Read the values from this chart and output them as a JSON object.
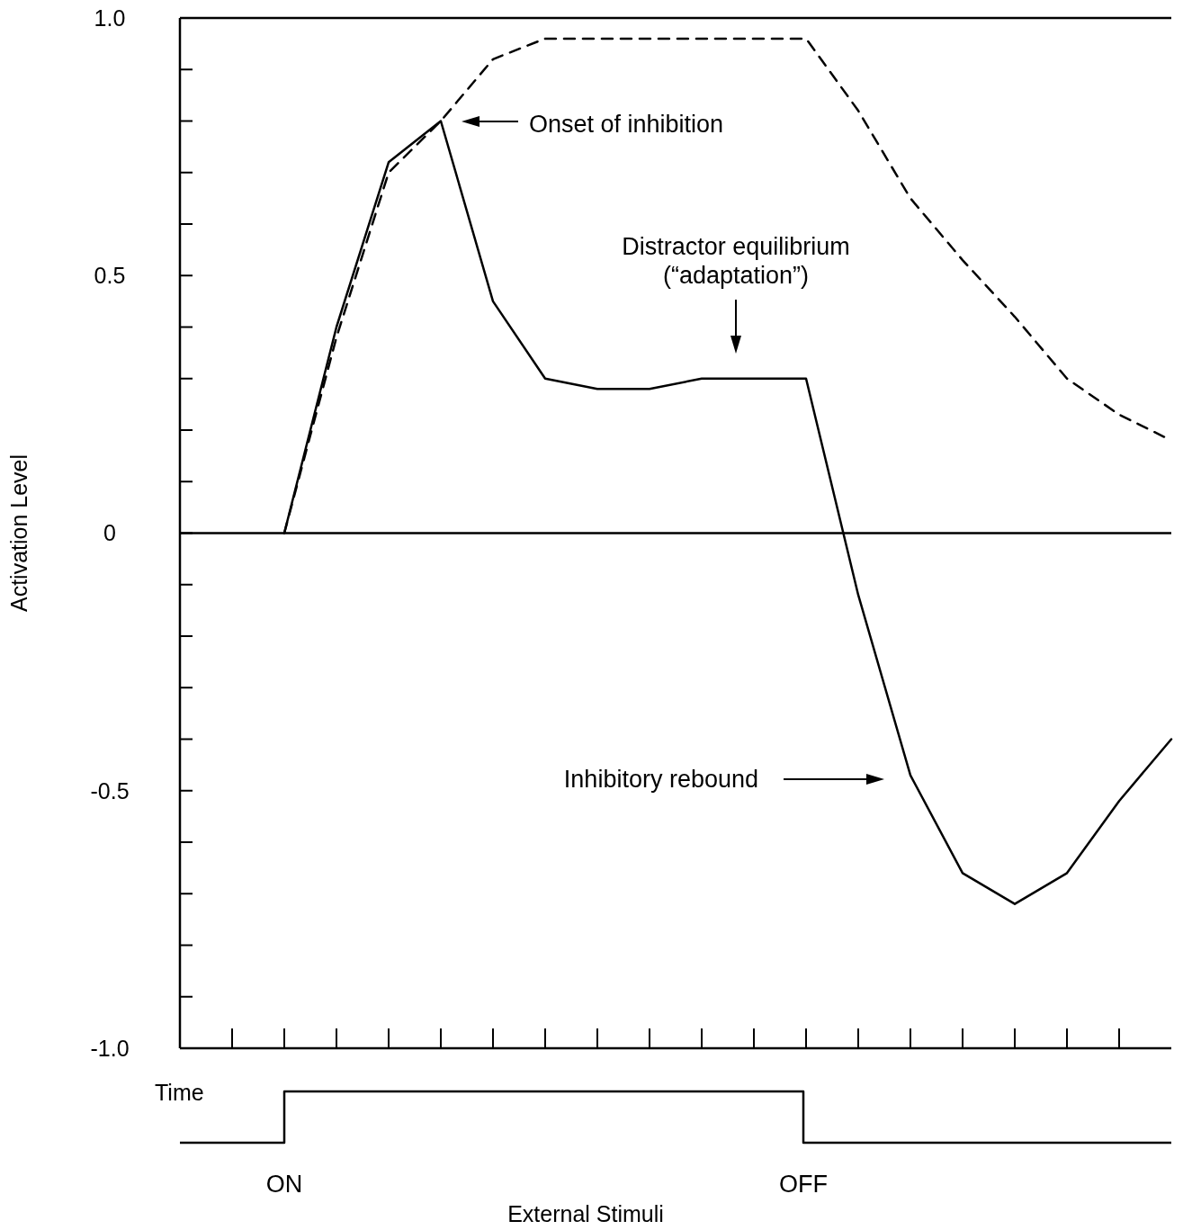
{
  "chart_data": [
    {
      "type": "line",
      "xlabel": "Time",
      "ylabel": "Activation Level",
      "categories": [
        null,
        null,
        null,
        null,
        null,
        null,
        null,
        null,
        null,
        null,
        null,
        null,
        null,
        null,
        null,
        null,
        null,
        null,
        null,
        null
      ],
      "ylim": [
        -1,
        1
      ],
      "yticks": [
        {
          "value": -1,
          "label": "-1.0"
        },
        {
          "value": -0.9,
          "label": null
        },
        {
          "value": -0.8,
          "label": null
        },
        {
          "value": -0.7,
          "label": null
        },
        {
          "value": -0.6,
          "label": null
        },
        {
          "value": -0.5,
          "label": "-0.5"
        },
        {
          "value": -0.4,
          "label": null
        },
        {
          "value": -0.3,
          "label": null
        },
        {
          "value": -0.2,
          "label": null
        },
        {
          "value": -0.1,
          "label": null
        },
        {
          "value": 0,
          "label": "0"
        },
        {
          "value": 0.1,
          "label": null
        },
        {
          "value": 0.2,
          "label": null
        },
        {
          "value": 0.3,
          "label": null
        },
        {
          "value": 0.4,
          "label": null
        },
        {
          "value": 0.5,
          "label": "0.5"
        },
        {
          "value": 0.6,
          "label": null
        },
        {
          "value": 0.7,
          "label": null
        },
        {
          "value": 0.8,
          "label": null
        },
        {
          "value": 0.9,
          "label": null
        },
        {
          "value": 1,
          "label": "1.0"
        }
      ],
      "grid": false,
      "marker": "none",
      "ref_lines": [
        {
          "axis": "y",
          "value": 0,
          "color": "#000000"
        }
      ],
      "series": [
        {
          "color": "#000000",
          "line_style": "solid",
          "values": [
            null,
            null,
            0,
            0.4,
            0.72,
            0.8,
            0.45,
            0.3,
            0.28,
            0.28,
            0.3,
            0.3,
            0.3,
            -0.12,
            -0.47,
            -0.66,
            -0.72,
            -0.66,
            -0.52,
            -0.4
          ]
        },
        {
          "color": "#000000",
          "line_style": "dashed",
          "values": [
            null,
            null,
            0,
            0.38,
            0.7,
            0.8,
            0.92,
            0.96,
            0.96,
            0.96,
            0.96,
            0.96,
            0.96,
            0.82,
            0.65,
            0.53,
            0.42,
            0.3,
            0.23,
            0.18
          ]
        }
      ],
      "annotations": [
        "Onset of inhibition",
        "Distractor equilibrium\n(“adaptation”)",
        "Inhibitory rebound"
      ]
    },
    {
      "type": "other",
      "xlabel": "External Stimuli",
      "annotations": [
        "ON",
        "OFF"
      ]
    }
  ]
}
